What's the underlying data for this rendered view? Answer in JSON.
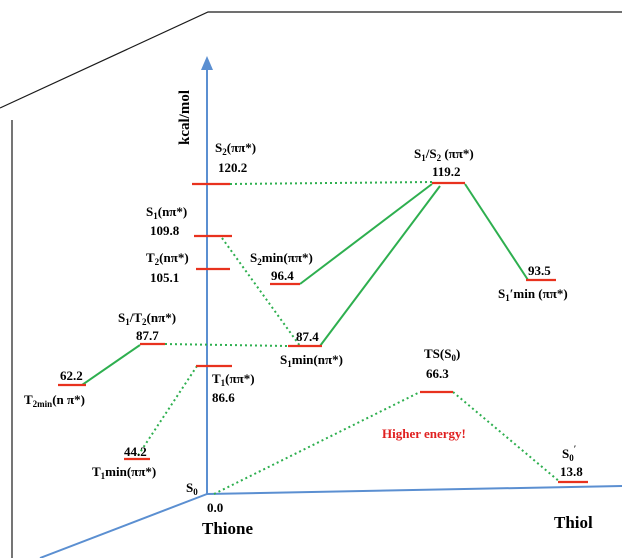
{
  "colors": {
    "axis": "#5b8fd1",
    "level": "#e8321e",
    "connector": "#2eaf4f",
    "frame": "#1a1a1a",
    "warning": "#e02020"
  },
  "axis": {
    "y_title": "kcal/mol",
    "origin_label": "S0",
    "origin_value": "0.0",
    "left_end": "Thione",
    "right_end": "Thiol"
  },
  "levels": [
    {
      "id": "s2",
      "name": "S2(ππ*)",
      "value": "120.2"
    },
    {
      "id": "s1",
      "name": "S1(nπ*)",
      "value": "109.8"
    },
    {
      "id": "t2",
      "name": "T2(nπ*)",
      "value": "105.1"
    },
    {
      "id": "s1t2",
      "name": "S1/T2(nπ*)",
      "value": "87.7"
    },
    {
      "id": "t2min",
      "name": "T2min(n π*)",
      "value": "62.2"
    },
    {
      "id": "t1",
      "name": "T1(ππ*)",
      "value": "86.6"
    },
    {
      "id": "t1min",
      "name": "T1min(ππ*)",
      "value": "44.2"
    },
    {
      "id": "s2min",
      "name": "S2min(ππ*)",
      "value": "96.4"
    },
    {
      "id": "s1min",
      "name": "S1min(nπ*)",
      "value": "87.4"
    },
    {
      "id": "s1s2",
      "name": "S1/S2 (ππ*)",
      "value": "119.2"
    },
    {
      "id": "s1pmin",
      "name": "S1′min (ππ*)",
      "value": "93.5"
    },
    {
      "id": "ts",
      "name": "TS(S0)",
      "value": "66.3"
    },
    {
      "id": "s0p",
      "name": "S0′",
      "value": "13.8"
    }
  ],
  "annotation": "Higher energy!"
}
